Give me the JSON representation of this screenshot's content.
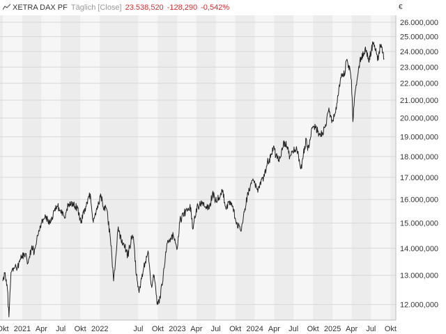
{
  "header": {
    "name": "XETRA DAX PF",
    "interval": "Täglich [Close]",
    "last": "23.538,520",
    "change": "-128,290",
    "change_pct": "-0,542%"
  },
  "currency": "€",
  "colors": {
    "line": "#222222",
    "negative": "#d32f2f",
    "band_dark": "#ececec",
    "band_light": "#f6f6f6",
    "grid": "#d8d8d8"
  },
  "chart_data": {
    "type": "line",
    "title": "",
    "xlabel": "",
    "ylabel": "€",
    "y_scale": "log",
    "grid": true,
    "legend": "none",
    "x_range": [
      "2020-10",
      "2025-10"
    ],
    "ylim": [
      11500000,
      26500000
    ],
    "y_ticks": [
      {
        "value": 12000000,
        "label": "12.000,000"
      },
      {
        "value": 13000000,
        "label": "13.000,000"
      },
      {
        "value": 14000000,
        "label": "14.000,000"
      },
      {
        "value": 15000000,
        "label": "15.000,000"
      },
      {
        "value": 16000000,
        "label": "16.000,000"
      },
      {
        "value": 17000000,
        "label": "17.000,000"
      },
      {
        "value": 18000000,
        "label": "18.000,000"
      },
      {
        "value": 19000000,
        "label": "19.000,000"
      },
      {
        "value": 20000000,
        "label": "20.000,000"
      },
      {
        "value": 21000000,
        "label": "21.000,000"
      },
      {
        "value": 22000000,
        "label": "22.000,000"
      },
      {
        "value": 23000000,
        "label": "23.000,000"
      },
      {
        "value": 24000000,
        "label": "24.000,000"
      },
      {
        "value": 25000000,
        "label": "25.000,000"
      },
      {
        "value": 26000000,
        "label": "26.000,000"
      }
    ],
    "x_ticks": [
      {
        "date": "2020-10",
        "label": "Okt"
      },
      {
        "date": "2021-01",
        "label": "2021"
      },
      {
        "date": "2021-04",
        "label": "Apr"
      },
      {
        "date": "2021-07",
        "label": "Jul"
      },
      {
        "date": "2021-10",
        "label": "Okt"
      },
      {
        "date": "2022-01",
        "label": "2022"
      },
      {
        "date": "2022-07",
        "label": "Jul"
      },
      {
        "date": "2022-10",
        "label": "Okt"
      },
      {
        "date": "2023-01",
        "label": "2023"
      },
      {
        "date": "2023-04",
        "label": "Apr"
      },
      {
        "date": "2023-07",
        "label": "Jul"
      },
      {
        "date": "2023-10",
        "label": "Okt"
      },
      {
        "date": "2024-01",
        "label": "2024"
      },
      {
        "date": "2024-04",
        "label": "Apr"
      },
      {
        "date": "2024-07",
        "label": "Jul"
      },
      {
        "date": "2024-10",
        "label": "Okt"
      },
      {
        "date": "2025-01",
        "label": "2025"
      },
      {
        "date": "2025-04",
        "label": "Apr"
      },
      {
        "date": "2025-07",
        "label": "Jul"
      },
      {
        "date": "2025-10",
        "label": "Okt"
      }
    ],
    "series": [
      {
        "points": [
          [
            "2020-10-01",
            12800000
          ],
          [
            "2020-10-12",
            13100000
          ],
          [
            "2020-10-23",
            12500000
          ],
          [
            "2020-10-30",
            11600000
          ],
          [
            "2020-11-04",
            12400000
          ],
          [
            "2020-11-09",
            13100000
          ],
          [
            "2020-11-25",
            13250000
          ],
          [
            "2020-12-10",
            13300000
          ],
          [
            "2020-12-30",
            13700000
          ],
          [
            "2021-01-15",
            13800000
          ],
          [
            "2021-01-29",
            13450000
          ],
          [
            "2021-02-15",
            14100000
          ],
          [
            "2021-02-26",
            13800000
          ],
          [
            "2021-03-12",
            14500000
          ],
          [
            "2021-03-31",
            15000000
          ],
          [
            "2021-04-15",
            15200000
          ],
          [
            "2021-04-30",
            15150000
          ],
          [
            "2021-05-12",
            15000000
          ],
          [
            "2021-05-31",
            15500000
          ],
          [
            "2021-06-15",
            15700000
          ],
          [
            "2021-06-30",
            15550000
          ],
          [
            "2021-07-19",
            15200000
          ],
          [
            "2021-07-30",
            15600000
          ],
          [
            "2021-08-13",
            15900000
          ],
          [
            "2021-08-31",
            15800000
          ],
          [
            "2021-09-15",
            15650000
          ],
          [
            "2021-09-30",
            15200000
          ],
          [
            "2021-10-06",
            15100000
          ],
          [
            "2021-10-29",
            15700000
          ],
          [
            "2021-11-17",
            16250000
          ],
          [
            "2021-11-30",
            15100000
          ],
          [
            "2021-12-03",
            15200000
          ],
          [
            "2021-12-15",
            15500000
          ],
          [
            "2021-12-31",
            15900000
          ],
          [
            "2022-01-05",
            16250000
          ],
          [
            "2022-01-21",
            15600000
          ],
          [
            "2022-02-02",
            15600000
          ],
          [
            "2022-02-24",
            14100000
          ],
          [
            "2022-03-07",
            12800000
          ],
          [
            "2022-03-29",
            14850000
          ],
          [
            "2022-04-14",
            14200000
          ],
          [
            "2022-04-29",
            14100000
          ],
          [
            "2022-05-12",
            13700000
          ],
          [
            "2022-05-31",
            14400000
          ],
          [
            "2022-06-08",
            14450000
          ],
          [
            "2022-06-22",
            13000000
          ],
          [
            "2022-07-05",
            12400000
          ],
          [
            "2022-07-15",
            12900000
          ],
          [
            "2022-08-16",
            13900000
          ],
          [
            "2022-09-01",
            12650000
          ],
          [
            "2022-09-14",
            13000000
          ],
          [
            "2022-09-29",
            12000000
          ],
          [
            "2022-10-12",
            12200000
          ],
          [
            "2022-10-31",
            13250000
          ],
          [
            "2022-11-15",
            14200000
          ],
          [
            "2022-11-30",
            14400000
          ],
          [
            "2022-12-13",
            14500000
          ],
          [
            "2022-12-30",
            13950000
          ],
          [
            "2023-01-13",
            15100000
          ],
          [
            "2023-02-03",
            15450000
          ],
          [
            "2023-02-16",
            15500000
          ],
          [
            "2023-03-06",
            15650000
          ],
          [
            "2023-03-15",
            14750000
          ],
          [
            "2023-03-31",
            15600000
          ],
          [
            "2023-04-28",
            15900000
          ],
          [
            "2023-05-18",
            15700000
          ],
          [
            "2023-05-31",
            15600000
          ],
          [
            "2023-06-16",
            16300000
          ],
          [
            "2023-06-30",
            15950000
          ],
          [
            "2023-07-20",
            16100000
          ],
          [
            "2023-07-31",
            16450000
          ],
          [
            "2023-08-18",
            15600000
          ],
          [
            "2023-08-31",
            15900000
          ],
          [
            "2023-09-20",
            15700000
          ],
          [
            "2023-10-04",
            15050000
          ],
          [
            "2023-10-26",
            14700000
          ],
          [
            "2023-11-15",
            15600000
          ],
          [
            "2023-11-30",
            16250000
          ],
          [
            "2023-12-14",
            16750000
          ],
          [
            "2023-12-29",
            16750000
          ],
          [
            "2024-01-17",
            16450000
          ],
          [
            "2024-01-31",
            16900000
          ],
          [
            "2024-02-15",
            17050000
          ],
          [
            "2024-02-29",
            17700000
          ],
          [
            "2024-03-15",
            17950000
          ],
          [
            "2024-03-28",
            18450000
          ],
          [
            "2024-04-15",
            17900000
          ],
          [
            "2024-04-30",
            17950000
          ],
          [
            "2024-05-15",
            18750000
          ],
          [
            "2024-05-31",
            18500000
          ],
          [
            "2024-06-14",
            18000000
          ],
          [
            "2024-06-28",
            18250000
          ],
          [
            "2024-07-15",
            18500000
          ],
          [
            "2024-08-05",
            17400000
          ],
          [
            "2024-08-30",
            18900000
          ],
          [
            "2024-09-06",
            18300000
          ],
          [
            "2024-09-27",
            19450000
          ],
          [
            "2024-10-14",
            19500000
          ],
          [
            "2024-10-31",
            19100000
          ],
          [
            "2024-11-15",
            19200000
          ],
          [
            "2024-11-29",
            19650000
          ],
          [
            "2024-12-13",
            20400000
          ],
          [
            "2024-12-30",
            19900000
          ],
          [
            "2025-01-15",
            20300000
          ],
          [
            "2025-01-31",
            21700000
          ],
          [
            "2025-02-14",
            22500000
          ],
          [
            "2025-02-28",
            22550000
          ],
          [
            "2025-03-06",
            23400000
          ],
          [
            "2025-03-18",
            23100000
          ],
          [
            "2025-03-31",
            22200000
          ],
          [
            "2025-04-07",
            19800000
          ],
          [
            "2025-04-16",
            21300000
          ],
          [
            "2025-04-30",
            22500000
          ],
          [
            "2025-05-15",
            23650000
          ],
          [
            "2025-05-30",
            23900000
          ],
          [
            "2025-06-05",
            24300000
          ],
          [
            "2025-06-20",
            23350000
          ],
          [
            "2025-07-03",
            24100000
          ],
          [
            "2025-07-10",
            24550000
          ],
          [
            "2025-07-24",
            24200000
          ],
          [
            "2025-08-01",
            23400000
          ],
          [
            "2025-08-14",
            24400000
          ],
          [
            "2025-08-22",
            24300000
          ],
          [
            "2025-09-01",
            23538520
          ]
        ]
      }
    ]
  }
}
